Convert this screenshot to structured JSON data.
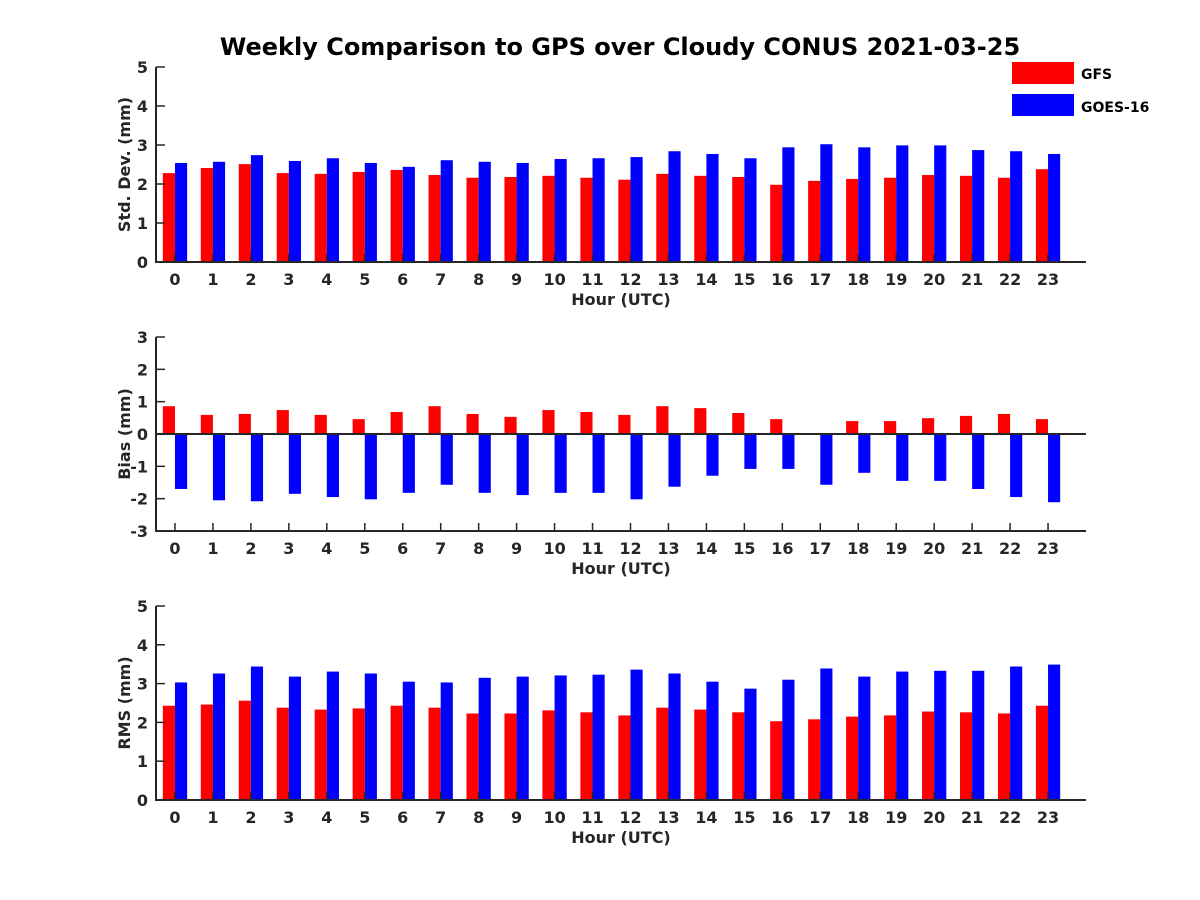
{
  "figure": {
    "title": "Weekly Comparison to GPS over Cloudy CONUS 2021-03-25"
  },
  "legend": {
    "placement": "top-right",
    "entries": [
      {
        "name": "GFS",
        "color": "#ff0000"
      },
      {
        "name": "GOES-16",
        "color": "#0000ff"
      }
    ]
  },
  "chart_data": [
    {
      "type": "bar",
      "title": "",
      "xlabel": "Hour (UTC)",
      "ylabel": "Std. Dev. (mm)",
      "ylim": [
        0,
        5
      ],
      "yticks": [
        0,
        1,
        2,
        3,
        4,
        5
      ],
      "grid": false,
      "categories": [
        "0",
        "1",
        "2",
        "3",
        "4",
        "5",
        "6",
        "7",
        "8",
        "9",
        "10",
        "11",
        "12",
        "13",
        "14",
        "15",
        "16",
        "17",
        "18",
        "19",
        "20",
        "21",
        "22",
        "23"
      ],
      "series": [
        {
          "name": "GFS",
          "color": "#ff0000",
          "values": [
            2.28,
            2.41,
            2.51,
            2.28,
            2.26,
            2.31,
            2.36,
            2.23,
            2.16,
            2.18,
            2.21,
            2.16,
            2.11,
            2.26,
            2.21,
            2.18,
            1.98,
            2.08,
            2.13,
            2.16,
            2.23,
            2.21,
            2.16,
            2.38
          ]
        },
        {
          "name": "GOES-16",
          "color": "#0000ff",
          "values": [
            2.54,
            2.57,
            2.74,
            2.59,
            2.66,
            2.54,
            2.44,
            2.61,
            2.57,
            2.54,
            2.64,
            2.66,
            2.69,
            2.84,
            2.77,
            2.66,
            2.94,
            3.02,
            2.94,
            2.99,
            2.99,
            2.87,
            2.84,
            2.77
          ]
        }
      ]
    },
    {
      "type": "bar",
      "title": "",
      "xlabel": "Hour (UTC)",
      "ylabel": "Bias (mm)",
      "ylim": [
        -3,
        3
      ],
      "yticks": [
        -3,
        -2,
        -1,
        0,
        1,
        2,
        3
      ],
      "grid": false,
      "zero_line": true,
      "categories": [
        "0",
        "1",
        "2",
        "3",
        "4",
        "5",
        "6",
        "7",
        "8",
        "9",
        "10",
        "11",
        "12",
        "13",
        "14",
        "15",
        "16",
        "17",
        "18",
        "19",
        "20",
        "21",
        "22",
        "23"
      ],
      "series": [
        {
          "name": "GFS",
          "color": "#ff0000",
          "values": [
            0.86,
            0.59,
            0.62,
            0.74,
            0.59,
            0.46,
            0.68,
            0.86,
            0.62,
            0.53,
            0.74,
            0.68,
            0.59,
            0.86,
            0.8,
            0.65,
            0.46,
            0.0,
            0.4,
            0.4,
            0.49,
            0.56,
            0.62,
            0.46
          ]
        },
        {
          "name": "GOES-16",
          "color": "#0000ff",
          "values": [
            -1.7,
            -2.05,
            -2.08,
            -1.85,
            -1.95,
            -2.02,
            -1.82,
            -1.57,
            -1.82,
            -1.89,
            -1.82,
            -1.82,
            -2.02,
            -1.63,
            -1.29,
            -1.08,
            -1.08,
            -1.57,
            -1.2,
            -1.45,
            -1.45,
            -1.7,
            -1.95,
            -2.11
          ]
        }
      ]
    },
    {
      "type": "bar",
      "title": "",
      "xlabel": "Hour (UTC)",
      "ylabel": "RMS (mm)",
      "ylim": [
        0,
        5
      ],
      "yticks": [
        0,
        1,
        2,
        3,
        4,
        5
      ],
      "grid": false,
      "categories": [
        "0",
        "1",
        "2",
        "3",
        "4",
        "5",
        "6",
        "7",
        "8",
        "9",
        "10",
        "11",
        "12",
        "13",
        "14",
        "15",
        "16",
        "17",
        "18",
        "19",
        "20",
        "21",
        "22",
        "23"
      ],
      "series": [
        {
          "name": "GFS",
          "color": "#ff0000",
          "values": [
            2.43,
            2.46,
            2.56,
            2.38,
            2.33,
            2.36,
            2.43,
            2.38,
            2.23,
            2.23,
            2.31,
            2.26,
            2.18,
            2.38,
            2.33,
            2.26,
            2.03,
            2.08,
            2.15,
            2.18,
            2.28,
            2.26,
            2.23,
            2.43
          ]
        },
        {
          "name": "GOES-16",
          "color": "#0000ff",
          "values": [
            3.03,
            3.26,
            3.44,
            3.18,
            3.31,
            3.26,
            3.05,
            3.03,
            3.15,
            3.18,
            3.21,
            3.23,
            3.36,
            3.26,
            3.05,
            2.87,
            3.1,
            3.39,
            3.18,
            3.31,
            3.33,
            3.33,
            3.44,
            3.49
          ]
        }
      ]
    }
  ]
}
